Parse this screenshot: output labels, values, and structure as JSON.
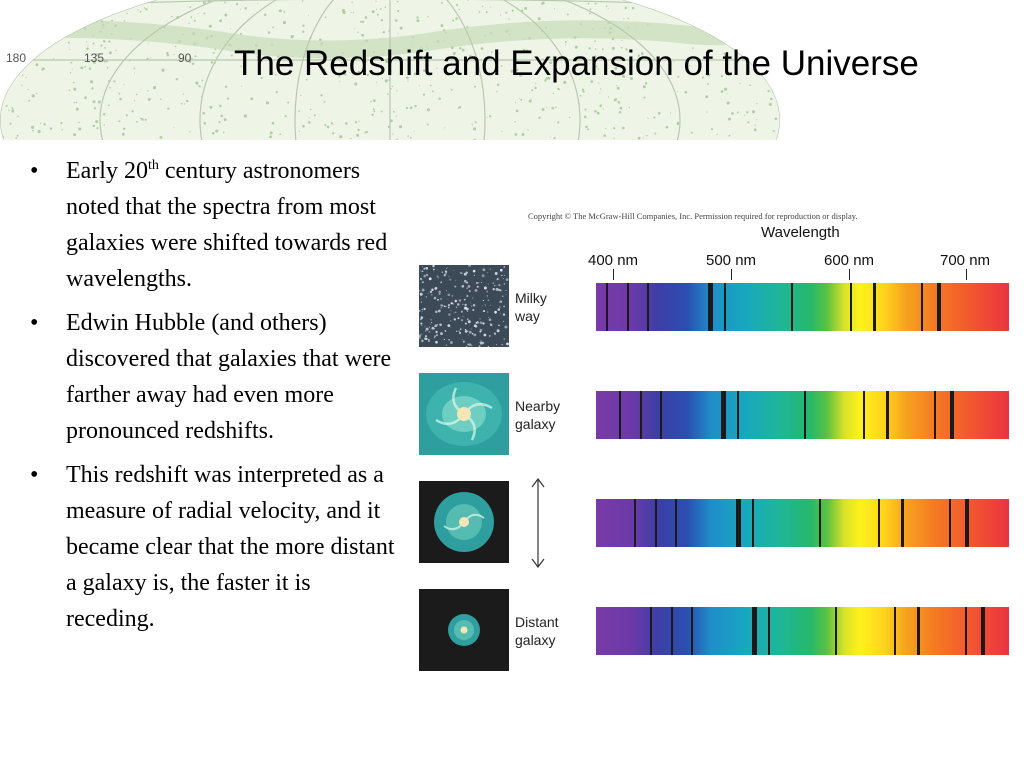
{
  "slide": {
    "title": "The Redshift and Expansion of the Universe",
    "map_labels": [
      "180",
      "135",
      "90"
    ]
  },
  "bullets": [
    {
      "pre": "Early 20",
      "sup": "th",
      "post": " century astronomers noted that the spectra from most galaxies were shifted towards red wavelengths."
    },
    {
      "text": "Edwin Hubble (and others) discovered that galaxies that were farther away had even more pronounced redshifts."
    },
    {
      "text": "This redshift was interpreted as a measure of radial velocity, and it became clear that the more distant a galaxy is, the faster it is receding."
    }
  ],
  "bullet_symbol": "•",
  "figure": {
    "copyright": "Copyright © The McGraw-Hill Companies, Inc. Permission required for reproduction or display.",
    "axis_title": "Wavelength",
    "ticks": [
      "400 nm",
      "500 nm",
      "600 nm",
      "700 nm"
    ],
    "rows": [
      {
        "label": "Milky\nway",
        "image": "milky-way-star-field"
      },
      {
        "label": "Nearby\ngalaxy",
        "image": "nearby-spiral-galaxy"
      },
      {
        "label": "",
        "image": "mid-distance-spiral-galaxy"
      },
      {
        "label": "Distant\ngalaxy",
        "image": "distant-spiral-galaxy"
      }
    ],
    "spectrum_colors": [
      "#7a3aa8",
      "#2a4fb0",
      "#18a7c0",
      "#27b86a",
      "#fff21c",
      "#f57a23",
      "#ea3440"
    ]
  }
}
